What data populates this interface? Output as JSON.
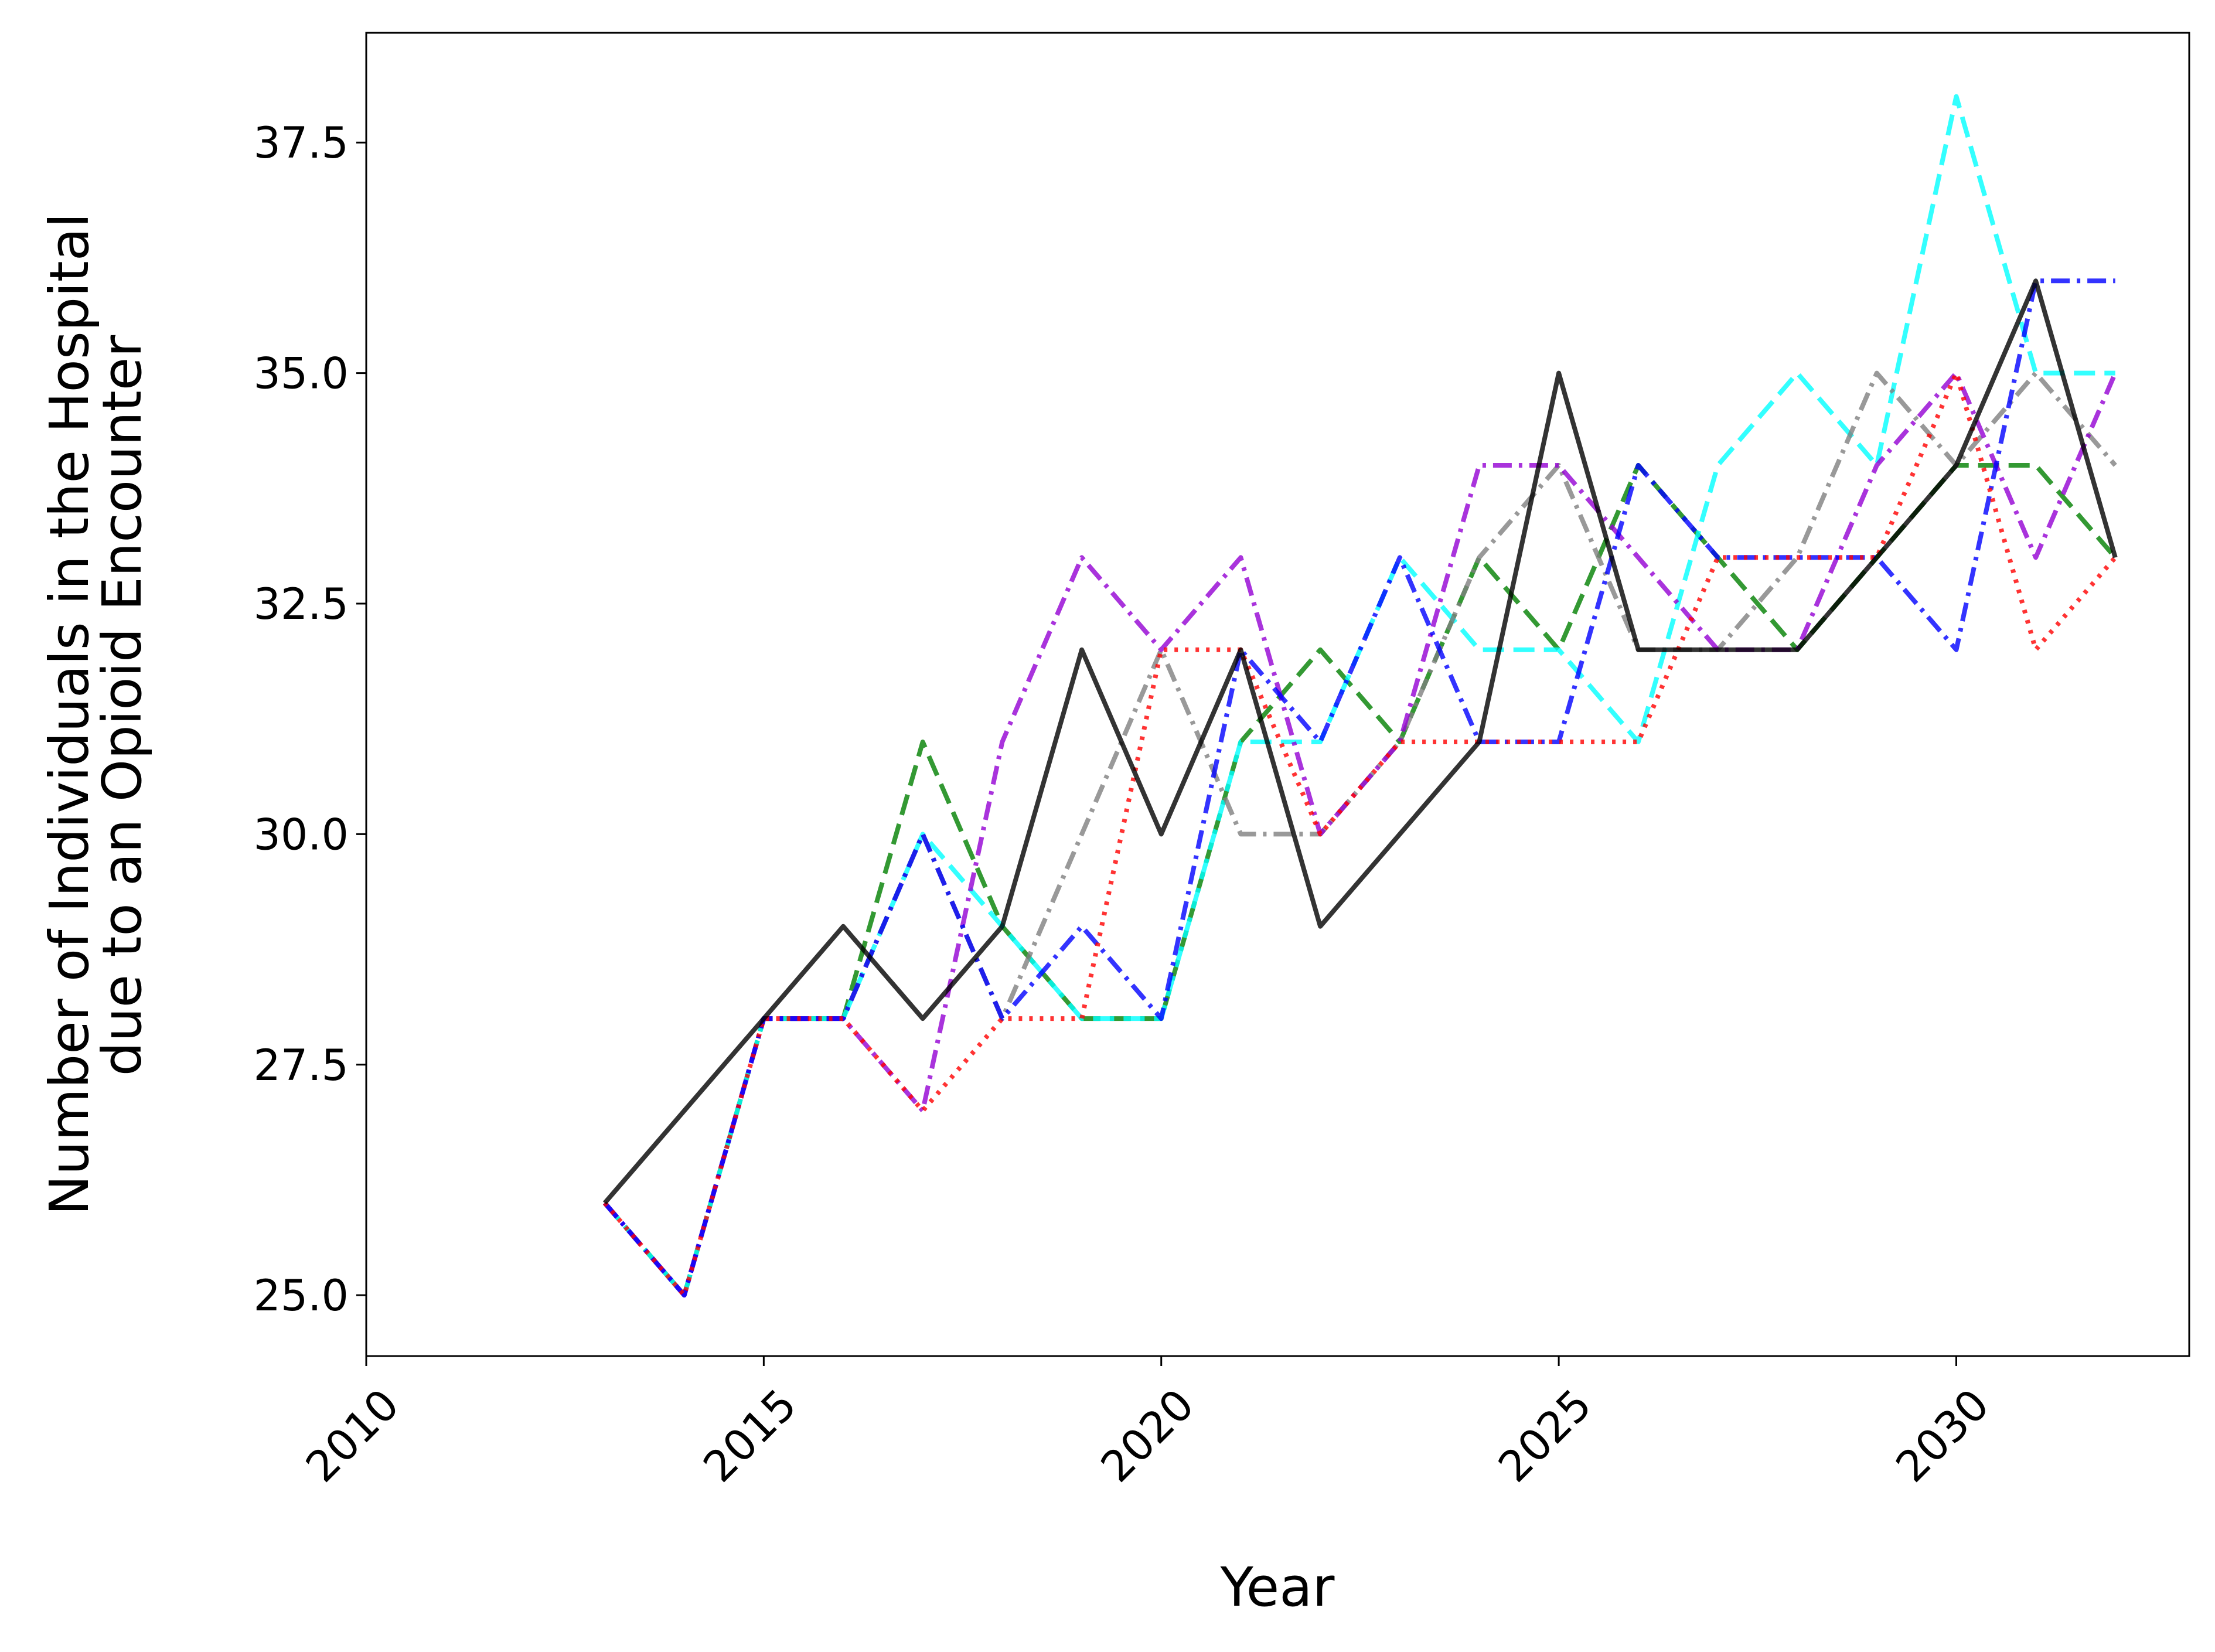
{
  "chart_data": {
    "type": "line",
    "xlabel": "Year",
    "ylabel": [
      "Number of Individuals in the Hospital",
      "due to an Opioid Encounter"
    ],
    "x": [
      2013,
      2014,
      2015,
      2016,
      2017,
      2018,
      2019,
      2020,
      2021,
      2022,
      2023,
      2024,
      2025,
      2026,
      2027,
      2028,
      2029,
      2030,
      2031,
      2032
    ],
    "xlim": [
      2010,
      2032.93
    ],
    "xticks": [
      2010,
      2015,
      2020,
      2025,
      2030
    ],
    "ylim": [
      24.34,
      38.69
    ],
    "yticks": [
      {
        "value": 25,
        "label": "25.0"
      },
      {
        "value": 27.5,
        "label": "27.5"
      },
      {
        "value": 30,
        "label": "30.0"
      },
      {
        "value": 32.5,
        "label": "32.5"
      },
      {
        "value": 35,
        "label": "35.0"
      },
      {
        "value": 37.5,
        "label": "37.5"
      }
    ],
    "grid": false,
    "series": [
      {
        "color": "#008000",
        "linestyle": "dashed",
        "values": [
          26,
          25,
          28,
          28,
          31,
          29,
          28,
          28,
          31,
          32,
          31,
          33,
          32,
          34,
          33,
          32,
          33,
          34,
          34,
          33
        ]
      },
      {
        "color": "#00ffff",
        "linestyle": "dashed",
        "values": [
          26,
          25,
          28,
          28,
          30,
          29,
          28,
          28,
          31,
          31,
          33,
          32,
          32,
          31,
          34,
          35,
          34,
          38,
          35,
          35
        ]
      },
      {
        "color": "#808080",
        "linestyle": "dashdot",
        "values": [
          26,
          25,
          28,
          28,
          30,
          28,
          30,
          32,
          30,
          30,
          31,
          33,
          34,
          32,
          32,
          33,
          35,
          34,
          35,
          34
        ]
      },
      {
        "color": "#9400d3",
        "linestyle": "dashdot",
        "values": [
          26,
          25,
          28,
          28,
          27,
          31,
          33,
          32,
          33,
          30,
          31,
          34,
          34,
          33,
          32,
          32,
          34,
          35,
          33,
          35
        ]
      },
      {
        "color": "#0000ff",
        "linestyle": "dashdot",
        "values": [
          26,
          25,
          28,
          28,
          30,
          28,
          29,
          28,
          32,
          31,
          33,
          31,
          31,
          34,
          33,
          33,
          33,
          32,
          36,
          36
        ]
      },
      {
        "color": "#ff0000",
        "linestyle": "dotted",
        "values": [
          26,
          25,
          28,
          28,
          27,
          28,
          28,
          32,
          32,
          30,
          31,
          31,
          31,
          31,
          33,
          33,
          33,
          35,
          32,
          33
        ]
      },
      {
        "color": "#000000",
        "linestyle": "solid",
        "values": [
          26,
          27,
          28,
          29,
          28,
          29,
          32,
          30,
          32,
          29,
          30,
          31,
          35,
          32,
          32,
          32,
          33,
          34,
          36,
          33
        ]
      }
    ]
  }
}
